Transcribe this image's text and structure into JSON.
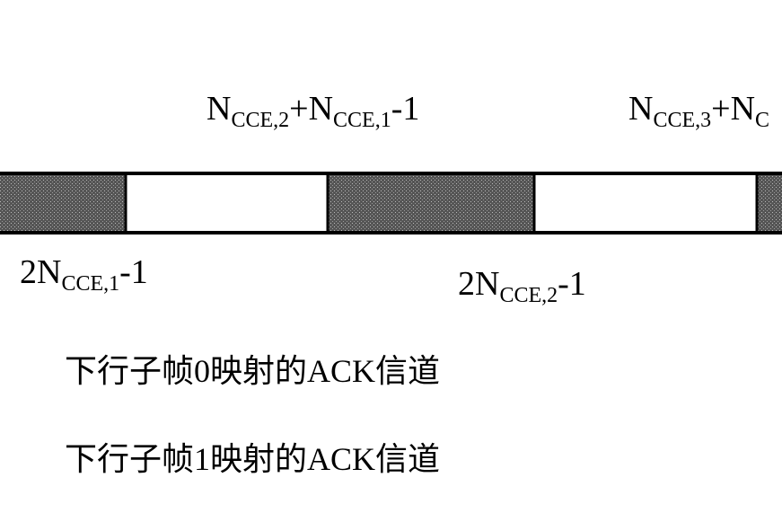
{
  "top_labels": [
    [
      "N",
      "CCE,2",
      "+N",
      "CCE,1",
      "-1"
    ],
    [
      "N",
      "CCE,3",
      "+N",
      "C"
    ]
  ],
  "bottom_labels": [
    [
      "2N",
      "CCE,1",
      "-1"
    ],
    [
      "2N",
      "CCE,2",
      "-1"
    ]
  ],
  "legend": [
    "下行子帧0映射的ACK信道",
    "下行子帧1映射的ACK信道"
  ]
}
